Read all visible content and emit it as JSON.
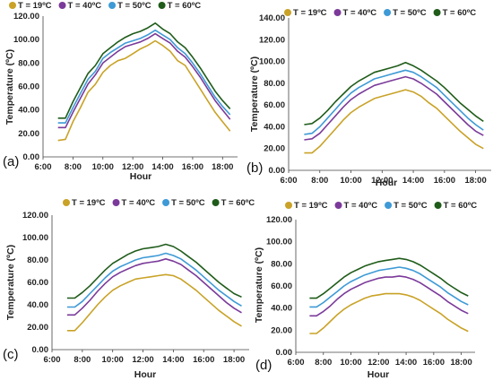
{
  "figure": {
    "colors": {
      "s19": "#C9A227",
      "s40": "#7B3A9A",
      "s50": "#3E9AD6",
      "s60": "#1F5C1A",
      "axis": "#444444"
    }
  },
  "chart_data": [
    {
      "type": "line",
      "panel_label": "(a)",
      "xlabel": "Hour",
      "ylabel": "Temperature (ºC)",
      "xlim": [
        6,
        19
      ],
      "ylim": [
        0,
        120
      ],
      "yticks": [
        "0.00",
        "20.00",
        "40.00",
        "60.00",
        "80.00",
        "100.00",
        "120.00"
      ],
      "xticks": [
        "6:00",
        "8:00",
        "10:00",
        "12:00",
        "14:00",
        "16:00",
        "18:00"
      ],
      "legend": "top",
      "grid": false,
      "x": [
        7.0,
        7.5,
        8.0,
        8.5,
        9.0,
        9.5,
        10.0,
        10.5,
        11.0,
        11.5,
        12.0,
        12.5,
        13.0,
        13.5,
        14.0,
        14.5,
        15.0,
        15.5,
        16.0,
        16.5,
        17.0,
        17.5,
        18.0,
        18.5
      ],
      "series": [
        {
          "name": "T = 19ºC",
          "color": "s19",
          "values": [
            14,
            15,
            30,
            42,
            55,
            62,
            72,
            78,
            82,
            84,
            88,
            92,
            95,
            99,
            95,
            90,
            82,
            78,
            68,
            58,
            48,
            38,
            30,
            22
          ]
        },
        {
          "name": "T = 40ºC",
          "color": "s40",
          "values": [
            25,
            25,
            38,
            50,
            62,
            70,
            80,
            85,
            90,
            94,
            96,
            98,
            101,
            105,
            101,
            97,
            90,
            85,
            77,
            68,
            58,
            48,
            40,
            32
          ]
        },
        {
          "name": "T = 50ºC",
          "color": "s50",
          "values": [
            29,
            29,
            42,
            54,
            66,
            73,
            84,
            89,
            93,
            97,
            99,
            101,
            104,
            108,
            104,
            100,
            93,
            88,
            80,
            71,
            61,
            51,
            43,
            36
          ]
        },
        {
          "name": "T = 60ºC",
          "color": "s60",
          "values": [
            33,
            33,
            47,
            59,
            71,
            78,
            88,
            93,
            98,
            102,
            105,
            107,
            110,
            114,
            109,
            105,
            98,
            93,
            85,
            76,
            66,
            56,
            48,
            41
          ]
        }
      ]
    },
    {
      "type": "line",
      "panel_label": "(b)",
      "xlabel": "Hour",
      "ylabel": "Temperature (ºC)",
      "xlim": [
        6,
        19
      ],
      "ylim": [
        0,
        140
      ],
      "yticks": [
        "0.00",
        "20.00",
        "40.00",
        "60.00",
        "80.00",
        "100.00",
        "120.00",
        "140.00"
      ],
      "xticks": [
        "6:00",
        "8:00",
        "10:00",
        "12:00",
        "14:00",
        "16:00",
        "18:00"
      ],
      "legend": "top",
      "grid": false,
      "x": [
        7.0,
        7.5,
        8.0,
        8.5,
        9.0,
        9.5,
        10.0,
        10.5,
        11.0,
        11.5,
        12.0,
        12.5,
        13.0,
        13.5,
        14.0,
        14.5,
        15.0,
        15.5,
        16.0,
        16.5,
        17.0,
        17.5,
        18.0,
        18.5
      ],
      "series": [
        {
          "name": "T = 19ºC",
          "color": "s19",
          "values": [
            16,
            16,
            22,
            30,
            38,
            46,
            53,
            58,
            62,
            66,
            68,
            70,
            72,
            74,
            72,
            68,
            62,
            57,
            50,
            43,
            36,
            30,
            24,
            20
          ]
        },
        {
          "name": "T = 40ºC",
          "color": "s40",
          "values": [
            28,
            29,
            34,
            42,
            50,
            58,
            65,
            70,
            74,
            78,
            80,
            82,
            84,
            86,
            84,
            80,
            75,
            70,
            63,
            56,
            49,
            42,
            36,
            32
          ]
        },
        {
          "name": "T = 50ºC",
          "color": "s50",
          "values": [
            33,
            34,
            40,
            48,
            56,
            64,
            71,
            76,
            80,
            84,
            86,
            88,
            90,
            92,
            90,
            86,
            81,
            76,
            69,
            62,
            55,
            48,
            42,
            37
          ]
        },
        {
          "name": "T = 60ºC",
          "color": "s60",
          "values": [
            42,
            43,
            48,
            55,
            63,
            70,
            77,
            82,
            86,
            90,
            92,
            94,
            96,
            99,
            96,
            92,
            87,
            82,
            76,
            69,
            62,
            56,
            50,
            45
          ]
        }
      ]
    },
    {
      "type": "line",
      "panel_label": "(c)",
      "xlabel": "Hour",
      "ylabel": "Temperature (ºC)",
      "xlim": [
        6,
        19
      ],
      "ylim": [
        0,
        120
      ],
      "yticks": [
        "0.00",
        "20.00",
        "40.00",
        "60.00",
        "80.00",
        "100.00",
        "120.00"
      ],
      "xticks": [
        "6:00",
        "8:00",
        "10:00",
        "12:00",
        "14:00",
        "16:00",
        "18:00"
      ],
      "legend": "top",
      "grid": false,
      "x": [
        7.0,
        7.5,
        8.0,
        8.5,
        9.0,
        9.5,
        10.0,
        10.5,
        11.0,
        11.5,
        12.0,
        12.5,
        13.0,
        13.5,
        14.0,
        14.5,
        15.0,
        15.5,
        16.0,
        16.5,
        17.0,
        17.5,
        18.0,
        18.5
      ],
      "series": [
        {
          "name": "T = 19ºC",
          "color": "s19",
          "values": [
            17,
            17,
            24,
            32,
            40,
            47,
            53,
            57,
            60,
            63,
            64,
            65,
            66,
            67,
            66,
            63,
            58,
            53,
            47,
            41,
            35,
            30,
            25,
            21
          ]
        },
        {
          "name": "T = 40ºC",
          "color": "s40",
          "values": [
            31,
            31,
            37,
            44,
            52,
            59,
            65,
            69,
            72,
            75,
            77,
            78,
            79,
            81,
            79,
            76,
            71,
            66,
            60,
            54,
            48,
            42,
            37,
            33
          ]
        },
        {
          "name": "T = 50ºC",
          "color": "s50",
          "values": [
            38,
            38,
            43,
            50,
            57,
            64,
            70,
            74,
            77,
            80,
            82,
            83,
            84,
            86,
            84,
            81,
            76,
            71,
            65,
            59,
            53,
            48,
            43,
            39
          ]
        },
        {
          "name": "T = 60ºC",
          "color": "s60",
          "values": [
            46,
            46,
            51,
            57,
            64,
            71,
            77,
            81,
            85,
            88,
            90,
            91,
            92,
            94,
            92,
            88,
            83,
            78,
            72,
            66,
            60,
            55,
            50,
            47
          ]
        }
      ]
    },
    {
      "type": "line",
      "panel_label": "(d)",
      "xlabel": "Hour",
      "ylabel": "Temperature (ºC)",
      "xlim": [
        6,
        19
      ],
      "ylim": [
        0,
        120
      ],
      "yticks": [
        "0.00",
        "20.00",
        "40.00",
        "60.00",
        "80.00",
        "100.00",
        "120.00"
      ],
      "xticks": [
        "6:00",
        "8:00",
        "10:00",
        "12:00",
        "14:00",
        "16:00",
        "18:00"
      ],
      "legend": "top",
      "grid": false,
      "x": [
        7.0,
        7.5,
        8.0,
        8.5,
        9.0,
        9.5,
        10.0,
        10.5,
        11.0,
        11.5,
        12.0,
        12.5,
        13.0,
        13.5,
        14.0,
        14.5,
        15.0,
        15.5,
        16.0,
        16.5,
        17.0,
        17.5,
        18.0,
        18.5
      ],
      "series": [
        {
          "name": "T = 19ºC",
          "color": "s19",
          "values": [
            17,
            17,
            22,
            28,
            34,
            39,
            43,
            46,
            49,
            51,
            52,
            53,
            53,
            53,
            52,
            50,
            47,
            43,
            39,
            35,
            30,
            26,
            22,
            19
          ]
        },
        {
          "name": "T = 40ºC",
          "color": "s40",
          "values": [
            33,
            33,
            37,
            42,
            48,
            53,
            57,
            60,
            63,
            65,
            67,
            68,
            68,
            69,
            68,
            66,
            63,
            59,
            55,
            51,
            46,
            42,
            38,
            35
          ]
        },
        {
          "name": "T = 50ºC",
          "color": "s50",
          "values": [
            41,
            41,
            45,
            50,
            55,
            60,
            64,
            67,
            70,
            72,
            74,
            75,
            76,
            77,
            76,
            74,
            71,
            67,
            63,
            59,
            54,
            50,
            46,
            43
          ]
        },
        {
          "name": "T = 60ºC",
          "color": "s60",
          "values": [
            49,
            49,
            53,
            58,
            63,
            68,
            72,
            75,
            78,
            80,
            82,
            83,
            84,
            85,
            84,
            82,
            79,
            75,
            71,
            67,
            62,
            58,
            54,
            51
          ]
        }
      ]
    }
  ]
}
